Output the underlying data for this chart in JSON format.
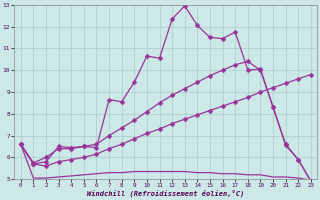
{
  "xlabel": "Windchill (Refroidissement éolien,°C)",
  "ylabel": "",
  "xlim": [
    -0.5,
    23.5
  ],
  "ylim": [
    5,
    13
  ],
  "xticks": [
    0,
    1,
    2,
    3,
    4,
    5,
    6,
    7,
    8,
    9,
    10,
    11,
    12,
    13,
    14,
    15,
    16,
    17,
    18,
    19,
    20,
    21,
    22,
    23
  ],
  "yticks": [
    5,
    6,
    7,
    8,
    9,
    10,
    11,
    12,
    13
  ],
  "background_color": "#cce9e8",
  "grid_color": "#aacccc",
  "line_color": "#993399",
  "series1_x": [
    0,
    1,
    2,
    3,
    4,
    5,
    6,
    7,
    8,
    9,
    10,
    11,
    12,
    13,
    14,
    15,
    16,
    17,
    18,
    19,
    20,
    21,
    22,
    23
  ],
  "series1_y": [
    6.6,
    5.7,
    5.8,
    6.5,
    6.45,
    6.5,
    6.45,
    8.65,
    8.55,
    9.45,
    10.65,
    10.55,
    12.35,
    12.95,
    12.05,
    11.5,
    11.45,
    11.75,
    10.0,
    10.05,
    8.3,
    6.6,
    5.9,
    4.9
  ],
  "series2_x": [
    0,
    1,
    2,
    3,
    4,
    5,
    6,
    7,
    8,
    9,
    10,
    11,
    12,
    13,
    14,
    15,
    16,
    17,
    18,
    19,
    20,
    21,
    22,
    23
  ],
  "series2_y": [
    6.6,
    5.75,
    6.0,
    6.4,
    6.4,
    6.5,
    6.6,
    7.0,
    7.35,
    7.7,
    8.1,
    8.5,
    8.85,
    9.15,
    9.45,
    9.75,
    10.0,
    10.25,
    10.4,
    10.0,
    8.3,
    6.55,
    5.9,
    4.9
  ],
  "series3_x": [
    0,
    1,
    2,
    3,
    4,
    5,
    6,
    7,
    8,
    9,
    10,
    11,
    12,
    13,
    14,
    15,
    16,
    17,
    18,
    19,
    20,
    21,
    22,
    23
  ],
  "series3_y": [
    6.6,
    5.7,
    5.6,
    5.8,
    5.9,
    6.0,
    6.15,
    6.4,
    6.6,
    6.85,
    7.1,
    7.3,
    7.55,
    7.75,
    7.95,
    8.15,
    8.35,
    8.55,
    8.75,
    9.0,
    9.2,
    9.4,
    9.6,
    9.8
  ],
  "series4_x": [
    0,
    1,
    2,
    3,
    4,
    5,
    6,
    7,
    8,
    9,
    10,
    11,
    12,
    13,
    14,
    15,
    16,
    17,
    18,
    19,
    20,
    21,
    22,
    23
  ],
  "series4_y": [
    6.6,
    5.05,
    5.05,
    5.1,
    5.15,
    5.2,
    5.25,
    5.3,
    5.3,
    5.35,
    5.35,
    5.35,
    5.35,
    5.35,
    5.3,
    5.3,
    5.25,
    5.25,
    5.2,
    5.2,
    5.1,
    5.1,
    5.05,
    4.95
  ],
  "marker": "D",
  "markersize": 2.5,
  "linewidth": 0.9
}
